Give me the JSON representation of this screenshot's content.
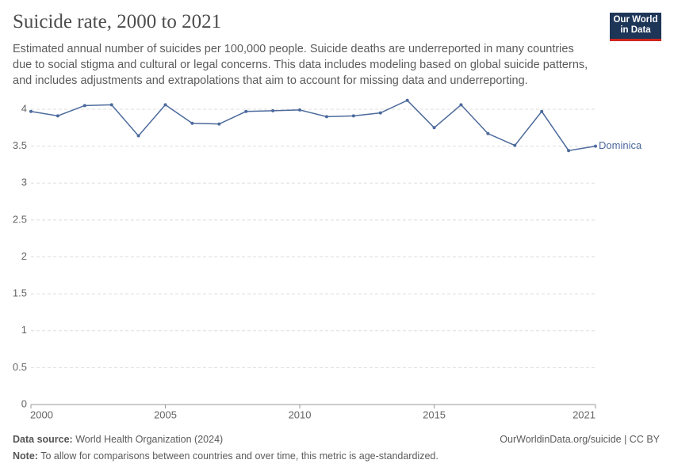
{
  "chart_data": {
    "type": "line",
    "title": "Suicide rate, 2000 to 2021",
    "subtitle": "Estimated annual number of suicides per 100,000 people. Suicide deaths are underreported in many countries due to social stigma and cultural or legal concerns. This data includes modeling based on global suicide patterns, and includes adjustments and extrapolations that aim to account for missing data and underreporting.",
    "logo": [
      "Our World",
      "in Data"
    ],
    "source_label": "Data source:",
    "source": "World Health Organization (2024)",
    "url": "OurWorldinData.org/suicide | CC BY",
    "note_label": "Note:",
    "note": "To allow for comparisons between countries and over time, this metric is age-standardized.",
    "x": [
      2000,
      2001,
      2002,
      2003,
      2004,
      2005,
      2006,
      2007,
      2008,
      2009,
      2010,
      2011,
      2012,
      2013,
      2014,
      2015,
      2016,
      2017,
      2018,
      2019,
      2020,
      2021
    ],
    "series": [
      {
        "name": "Dominica",
        "color": "#4c6a9c",
        "values": [
          3.97,
          3.91,
          4.05,
          4.06,
          3.64,
          4.06,
          3.81,
          3.8,
          3.97,
          3.98,
          3.99,
          3.9,
          3.91,
          3.95,
          4.12,
          3.75,
          4.06,
          3.67,
          3.51,
          3.97,
          3.44,
          3.5
        ]
      }
    ],
    "xlim": [
      2000,
      2021
    ],
    "xticks": [
      2000,
      2005,
      2010,
      2015,
      2021
    ],
    "ylim": [
      0,
      4.15
    ],
    "yticks": [
      0,
      0.5,
      1,
      1.5,
      2,
      2.5,
      3,
      3.5,
      4
    ],
    "grid": true
  }
}
